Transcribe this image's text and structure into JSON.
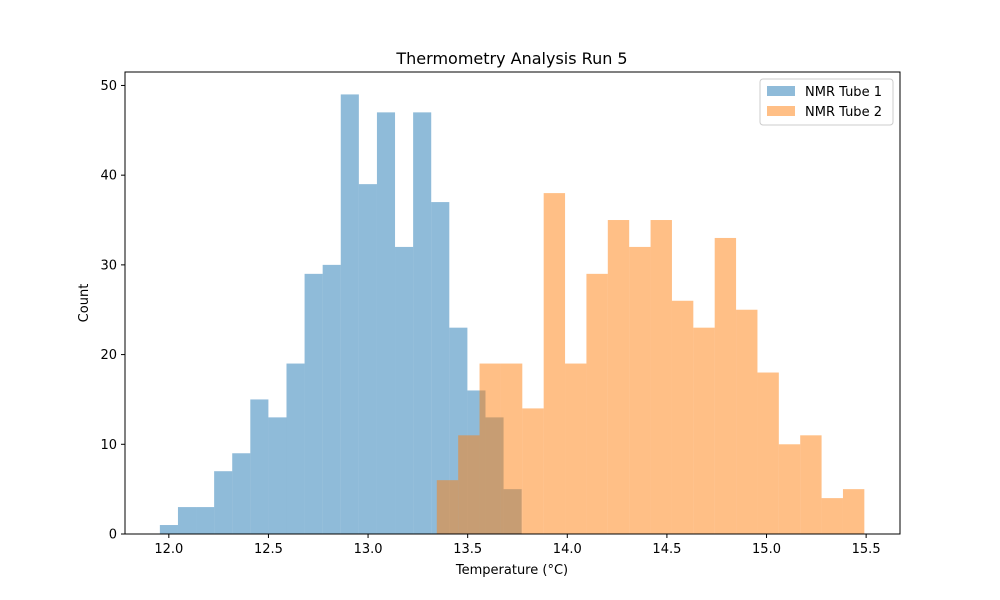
{
  "chart_data": {
    "type": "histogram",
    "title": "Thermometry Analysis Run 5",
    "xlabel": "Temperature (°C)",
    "ylabel": "Count",
    "xlim": [
      11.78,
      15.67
    ],
    "ylim": [
      0,
      51.5
    ],
    "xticks": [
      12.0,
      12.5,
      13.0,
      13.5,
      14.0,
      14.5,
      15.0,
      15.5
    ],
    "xtick_labels": [
      "12.0",
      "12.5",
      "13.0",
      "13.5",
      "14.0",
      "14.5",
      "15.0",
      "15.5"
    ],
    "yticks": [
      0,
      10,
      20,
      30,
      40,
      50
    ],
    "ytick_labels": [
      "0",
      "10",
      "20",
      "30",
      "40",
      "50"
    ],
    "legend_position": "top-right",
    "series": [
      {
        "name": "NMR Tube 1",
        "color": "#1f77b4",
        "opacity": 0.5,
        "bin_start": 11.955,
        "bin_width": 0.0908,
        "counts": [
          1,
          3,
          3,
          7,
          9,
          15,
          13,
          19,
          29,
          30,
          49,
          39,
          47,
          32,
          47,
          37,
          23,
          16,
          13,
          5
        ]
      },
      {
        "name": "NMR Tube 2",
        "color": "#ff7f0e",
        "opacity": 0.5,
        "bin_start": 13.345,
        "bin_width": 0.1073,
        "counts": [
          6,
          11,
          19,
          19,
          14,
          38,
          19,
          29,
          35,
          32,
          35,
          26,
          23,
          33,
          25,
          18,
          10,
          11,
          4,
          5
        ]
      }
    ]
  }
}
